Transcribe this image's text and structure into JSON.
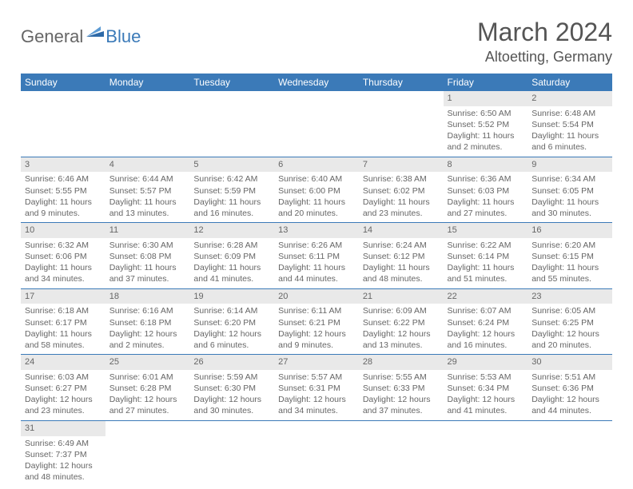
{
  "brand": {
    "part1": "General",
    "part2": "Blue"
  },
  "title": "March 2024",
  "location": "Altoetting, Germany",
  "colors": {
    "header_bg": "#3b7ab8",
    "header_text": "#ffffff",
    "daynum_bg": "#e9e9e9",
    "text": "#666666",
    "border": "#3b7ab8",
    "page_bg": "#ffffff"
  },
  "day_labels": [
    "Sunday",
    "Monday",
    "Tuesday",
    "Wednesday",
    "Thursday",
    "Friday",
    "Saturday"
  ],
  "weeks": [
    [
      {
        "n": "",
        "sr": "",
        "ss": "",
        "dl": ""
      },
      {
        "n": "",
        "sr": "",
        "ss": "",
        "dl": ""
      },
      {
        "n": "",
        "sr": "",
        "ss": "",
        "dl": ""
      },
      {
        "n": "",
        "sr": "",
        "ss": "",
        "dl": ""
      },
      {
        "n": "",
        "sr": "",
        "ss": "",
        "dl": ""
      },
      {
        "n": "1",
        "sr": "Sunrise: 6:50 AM",
        "ss": "Sunset: 5:52 PM",
        "dl": "Daylight: 11 hours and 2 minutes."
      },
      {
        "n": "2",
        "sr": "Sunrise: 6:48 AM",
        "ss": "Sunset: 5:54 PM",
        "dl": "Daylight: 11 hours and 6 minutes."
      }
    ],
    [
      {
        "n": "3",
        "sr": "Sunrise: 6:46 AM",
        "ss": "Sunset: 5:55 PM",
        "dl": "Daylight: 11 hours and 9 minutes."
      },
      {
        "n": "4",
        "sr": "Sunrise: 6:44 AM",
        "ss": "Sunset: 5:57 PM",
        "dl": "Daylight: 11 hours and 13 minutes."
      },
      {
        "n": "5",
        "sr": "Sunrise: 6:42 AM",
        "ss": "Sunset: 5:59 PM",
        "dl": "Daylight: 11 hours and 16 minutes."
      },
      {
        "n": "6",
        "sr": "Sunrise: 6:40 AM",
        "ss": "Sunset: 6:00 PM",
        "dl": "Daylight: 11 hours and 20 minutes."
      },
      {
        "n": "7",
        "sr": "Sunrise: 6:38 AM",
        "ss": "Sunset: 6:02 PM",
        "dl": "Daylight: 11 hours and 23 minutes."
      },
      {
        "n": "8",
        "sr": "Sunrise: 6:36 AM",
        "ss": "Sunset: 6:03 PM",
        "dl": "Daylight: 11 hours and 27 minutes."
      },
      {
        "n": "9",
        "sr": "Sunrise: 6:34 AM",
        "ss": "Sunset: 6:05 PM",
        "dl": "Daylight: 11 hours and 30 minutes."
      }
    ],
    [
      {
        "n": "10",
        "sr": "Sunrise: 6:32 AM",
        "ss": "Sunset: 6:06 PM",
        "dl": "Daylight: 11 hours and 34 minutes."
      },
      {
        "n": "11",
        "sr": "Sunrise: 6:30 AM",
        "ss": "Sunset: 6:08 PM",
        "dl": "Daylight: 11 hours and 37 minutes."
      },
      {
        "n": "12",
        "sr": "Sunrise: 6:28 AM",
        "ss": "Sunset: 6:09 PM",
        "dl": "Daylight: 11 hours and 41 minutes."
      },
      {
        "n": "13",
        "sr": "Sunrise: 6:26 AM",
        "ss": "Sunset: 6:11 PM",
        "dl": "Daylight: 11 hours and 44 minutes."
      },
      {
        "n": "14",
        "sr": "Sunrise: 6:24 AM",
        "ss": "Sunset: 6:12 PM",
        "dl": "Daylight: 11 hours and 48 minutes."
      },
      {
        "n": "15",
        "sr": "Sunrise: 6:22 AM",
        "ss": "Sunset: 6:14 PM",
        "dl": "Daylight: 11 hours and 51 minutes."
      },
      {
        "n": "16",
        "sr": "Sunrise: 6:20 AM",
        "ss": "Sunset: 6:15 PM",
        "dl": "Daylight: 11 hours and 55 minutes."
      }
    ],
    [
      {
        "n": "17",
        "sr": "Sunrise: 6:18 AM",
        "ss": "Sunset: 6:17 PM",
        "dl": "Daylight: 11 hours and 58 minutes."
      },
      {
        "n": "18",
        "sr": "Sunrise: 6:16 AM",
        "ss": "Sunset: 6:18 PM",
        "dl": "Daylight: 12 hours and 2 minutes."
      },
      {
        "n": "19",
        "sr": "Sunrise: 6:14 AM",
        "ss": "Sunset: 6:20 PM",
        "dl": "Daylight: 12 hours and 6 minutes."
      },
      {
        "n": "20",
        "sr": "Sunrise: 6:11 AM",
        "ss": "Sunset: 6:21 PM",
        "dl": "Daylight: 12 hours and 9 minutes."
      },
      {
        "n": "21",
        "sr": "Sunrise: 6:09 AM",
        "ss": "Sunset: 6:22 PM",
        "dl": "Daylight: 12 hours and 13 minutes."
      },
      {
        "n": "22",
        "sr": "Sunrise: 6:07 AM",
        "ss": "Sunset: 6:24 PM",
        "dl": "Daylight: 12 hours and 16 minutes."
      },
      {
        "n": "23",
        "sr": "Sunrise: 6:05 AM",
        "ss": "Sunset: 6:25 PM",
        "dl": "Daylight: 12 hours and 20 minutes."
      }
    ],
    [
      {
        "n": "24",
        "sr": "Sunrise: 6:03 AM",
        "ss": "Sunset: 6:27 PM",
        "dl": "Daylight: 12 hours and 23 minutes."
      },
      {
        "n": "25",
        "sr": "Sunrise: 6:01 AM",
        "ss": "Sunset: 6:28 PM",
        "dl": "Daylight: 12 hours and 27 minutes."
      },
      {
        "n": "26",
        "sr": "Sunrise: 5:59 AM",
        "ss": "Sunset: 6:30 PM",
        "dl": "Daylight: 12 hours and 30 minutes."
      },
      {
        "n": "27",
        "sr": "Sunrise: 5:57 AM",
        "ss": "Sunset: 6:31 PM",
        "dl": "Daylight: 12 hours and 34 minutes."
      },
      {
        "n": "28",
        "sr": "Sunrise: 5:55 AM",
        "ss": "Sunset: 6:33 PM",
        "dl": "Daylight: 12 hours and 37 minutes."
      },
      {
        "n": "29",
        "sr": "Sunrise: 5:53 AM",
        "ss": "Sunset: 6:34 PM",
        "dl": "Daylight: 12 hours and 41 minutes."
      },
      {
        "n": "30",
        "sr": "Sunrise: 5:51 AM",
        "ss": "Sunset: 6:36 PM",
        "dl": "Daylight: 12 hours and 44 minutes."
      }
    ],
    [
      {
        "n": "31",
        "sr": "Sunrise: 6:49 AM",
        "ss": "Sunset: 7:37 PM",
        "dl": "Daylight: 12 hours and 48 minutes."
      },
      {
        "n": "",
        "sr": "",
        "ss": "",
        "dl": ""
      },
      {
        "n": "",
        "sr": "",
        "ss": "",
        "dl": ""
      },
      {
        "n": "",
        "sr": "",
        "ss": "",
        "dl": ""
      },
      {
        "n": "",
        "sr": "",
        "ss": "",
        "dl": ""
      },
      {
        "n": "",
        "sr": "",
        "ss": "",
        "dl": ""
      },
      {
        "n": "",
        "sr": "",
        "ss": "",
        "dl": ""
      }
    ]
  ]
}
